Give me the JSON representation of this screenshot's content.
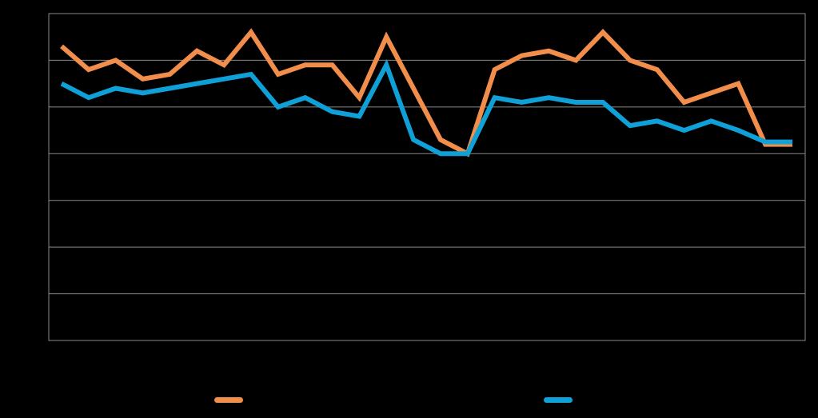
{
  "chart_data": {
    "type": "line",
    "title": "",
    "xlabel": "",
    "ylabel": "",
    "ylim": [
      0,
      7
    ],
    "grid": true,
    "gridline_count": 7,
    "legend_placement": "bottom",
    "x": [
      1,
      2,
      3,
      4,
      5,
      6,
      7,
      8,
      9,
      10,
      11,
      12,
      13,
      14,
      15,
      16,
      17,
      18,
      19,
      20,
      21,
      22,
      23,
      24,
      25,
      26,
      27,
      28
    ],
    "series": [
      {
        "color": "#f28e4b",
        "values": [
          6.3,
          5.8,
          6.0,
          5.6,
          5.7,
          6.2,
          5.9,
          6.6,
          5.7,
          5.9,
          5.9,
          5.2,
          6.5,
          5.4,
          4.3,
          4.0,
          5.8,
          6.1,
          6.2,
          6.0,
          6.6,
          6.0,
          5.8,
          5.1,
          5.3,
          5.5,
          4.2,
          4.2
        ]
      },
      {
        "color": "#0fa0d8",
        "values": [
          5.5,
          5.2,
          5.4,
          5.3,
          5.4,
          5.5,
          5.6,
          5.7,
          5.0,
          5.2,
          4.9,
          4.8,
          5.9,
          4.3,
          4.0,
          4.0,
          5.2,
          5.1,
          5.2,
          5.1,
          5.1,
          4.6,
          4.7,
          4.5,
          4.7,
          4.5,
          4.25,
          4.25
        ]
      }
    ]
  }
}
